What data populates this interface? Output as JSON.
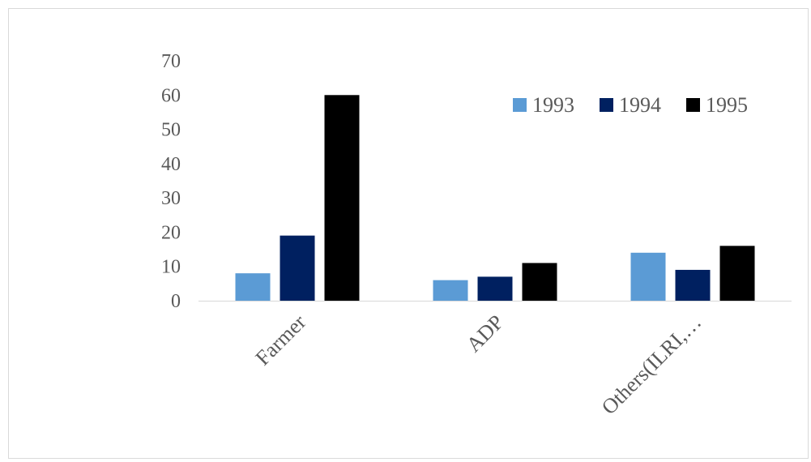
{
  "chart_data": {
    "type": "bar",
    "categories": [
      "Farmer",
      "ADP",
      "Others(ILRI,…"
    ],
    "series": [
      {
        "name": "1993",
        "values": [
          8,
          6,
          14
        ],
        "color": "#5b9bd5"
      },
      {
        "name": "1994",
        "values": [
          19,
          7,
          9
        ],
        "color": "#002060"
      },
      {
        "name": "1995",
        "values": [
          60,
          11,
          16
        ],
        "color": "#000000"
      }
    ],
    "ylim": [
      0,
      70
    ],
    "yticks": [
      "0",
      "10",
      "20",
      "30",
      "40",
      "50",
      "60",
      "70"
    ],
    "grid": false,
    "legend_position": "top-right"
  }
}
